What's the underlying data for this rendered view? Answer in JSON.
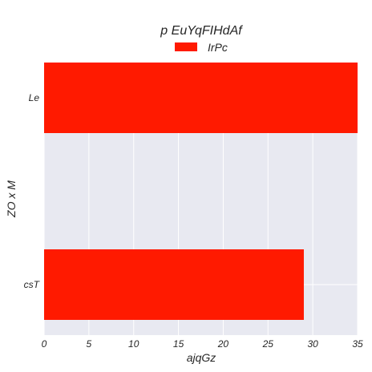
{
  "chart_data": {
    "type": "bar",
    "orientation": "horizontal",
    "title": "p EuYqFIHdAf",
    "xlabel": "ajqGz",
    "ylabel": "ZO x M",
    "categories": [
      "Le",
      "csT"
    ],
    "series": [
      {
        "name": "IrPc",
        "values": [
          35,
          29
        ],
        "color": "#ff1a00"
      }
    ],
    "xlim": [
      0,
      35
    ],
    "xticks": [
      0,
      5,
      10,
      15,
      20,
      25,
      30,
      35
    ],
    "grid": true,
    "legend_position": "top-center",
    "colors": {
      "plot_background": "#e8e9f1",
      "grid": "#ffffff",
      "text": "#262626"
    }
  }
}
